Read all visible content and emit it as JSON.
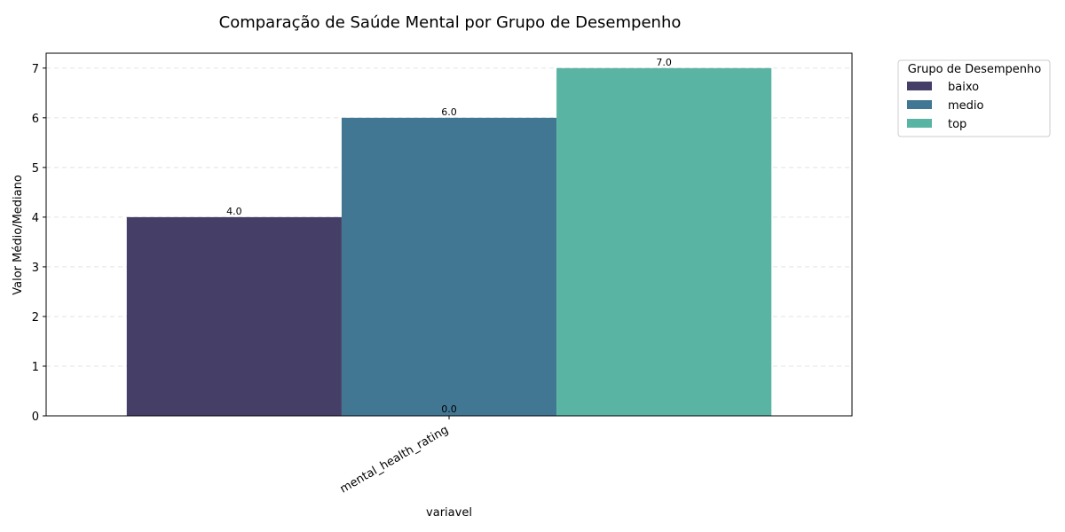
{
  "chart_data": {
    "type": "bar",
    "title": "Comparação de Saúde Mental por Grupo de Desempenho",
    "xlabel": "variavel",
    "ylabel": "Valor Médio/Mediano",
    "categories": [
      "mental_health_rating"
    ],
    "ylim": [
      0,
      7.3
    ],
    "yticks": [
      0,
      1,
      2,
      3,
      4,
      5,
      6,
      7
    ],
    "grid": true,
    "legend": {
      "title": "Grupo de Desempenho",
      "placement": "outside-top-right"
    },
    "series": [
      {
        "name": "baixo",
        "values": [
          4.0
        ],
        "label": "4.0",
        "color": "#453e67"
      },
      {
        "name": "medio",
        "values": [
          6.0
        ],
        "label": "6.0",
        "color": "#427794"
      },
      {
        "name": "top",
        "values": [
          7.0
        ],
        "label": "7.0",
        "color": "#59b4a3"
      }
    ],
    "extra_labels": [
      "0.0"
    ]
  }
}
